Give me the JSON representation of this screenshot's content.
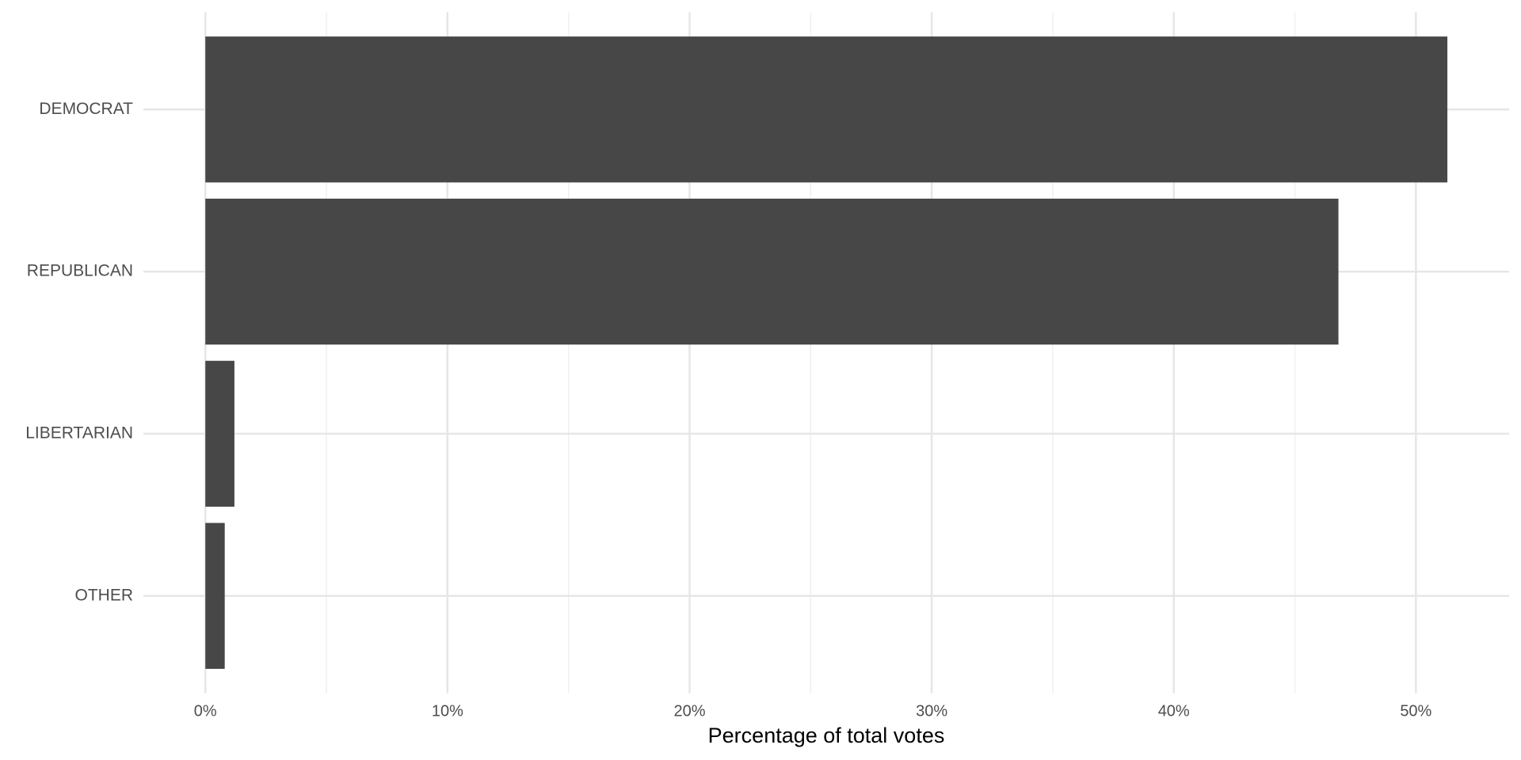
{
  "chart_data": {
    "type": "bar",
    "orientation": "horizontal",
    "categories": [
      "DEMOCRAT",
      "REPUBLICAN",
      "LIBERTARIAN",
      "OTHER"
    ],
    "values": [
      51.3,
      46.8,
      1.2,
      0.8
    ],
    "color": "#474747",
    "xlabel": "Percentage of total votes",
    "xlim": [
      -2.56,
      53.85
    ],
    "xticks": [
      {
        "value": 0,
        "label": "0%"
      },
      {
        "value": 10,
        "label": "10%"
      },
      {
        "value": 20,
        "label": "20%"
      },
      {
        "value": 30,
        "label": "30%"
      },
      {
        "value": 40,
        "label": "40%"
      },
      {
        "value": 50,
        "label": "50%"
      }
    ],
    "xminor": [
      5,
      15,
      25,
      35,
      45
    ],
    "grid": true
  }
}
